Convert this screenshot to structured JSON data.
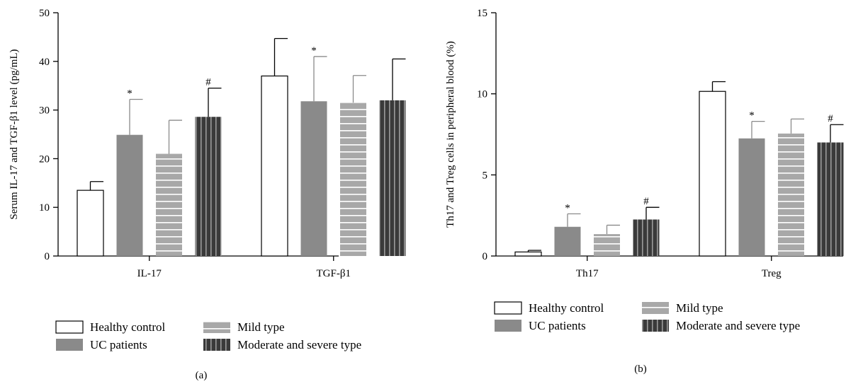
{
  "colors": {
    "healthy": "#ffffff",
    "uc": "#8a8a8a",
    "mild": "#a8a8a8",
    "severe": "#3a3a3a",
    "stripe": "#ffffff",
    "axis": "#000000"
  },
  "legend": [
    {
      "key": "healthy",
      "label": "Healthy control"
    },
    {
      "key": "uc",
      "label": "UC patients"
    },
    {
      "key": "mild",
      "label": "Mild type"
    },
    {
      "key": "severe",
      "label": "Moderate and severe type"
    }
  ],
  "chart_data": [
    {
      "type": "bar",
      "panel": "(a)",
      "ylabel": "Serum IL-17 and TGF-β1 level (pg/mL)",
      "ylim": [
        0,
        50
      ],
      "yticks": [
        0,
        10,
        20,
        30,
        40,
        50
      ],
      "categories": [
        "IL-17",
        "TGF-β1"
      ],
      "series": [
        {
          "name": "Healthy control",
          "key": "healthy",
          "values": [
            13.5,
            37.0
          ],
          "errors": [
            1.8,
            7.7
          ],
          "markers": [
            "",
            ""
          ]
        },
        {
          "name": "UC patients",
          "key": "uc",
          "values": [
            24.9,
            31.8
          ],
          "errors": [
            7.3,
            9.2
          ],
          "markers": [
            "*",
            "*"
          ]
        },
        {
          "name": "Mild type",
          "key": "mild",
          "values": [
            21.0,
            31.5
          ],
          "errors": [
            6.9,
            5.6
          ],
          "markers": [
            "",
            ""
          ]
        },
        {
          "name": "Moderate and severe type",
          "key": "severe",
          "values": [
            28.6,
            32.0
          ],
          "errors": [
            5.9,
            8.5
          ],
          "markers": [
            "#",
            ""
          ]
        }
      ]
    },
    {
      "type": "bar",
      "panel": "(b)",
      "ylabel": "Th17 and Treg cells in peripheral blood (%)",
      "ylim": [
        0,
        15
      ],
      "yticks": [
        0,
        5,
        10,
        15
      ],
      "categories": [
        "Th17",
        "Treg"
      ],
      "series": [
        {
          "name": "Healthy control",
          "key": "healthy",
          "values": [
            0.25,
            10.15
          ],
          "errors": [
            0.1,
            0.6
          ],
          "markers": [
            "",
            ""
          ]
        },
        {
          "name": "UC patients",
          "key": "uc",
          "values": [
            1.8,
            7.25
          ],
          "errors": [
            0.8,
            1.05
          ],
          "markers": [
            "*",
            "*"
          ]
        },
        {
          "name": "Mild type",
          "key": "mild",
          "values": [
            1.35,
            7.55
          ],
          "errors": [
            0.55,
            0.9
          ],
          "markers": [
            "",
            ""
          ]
        },
        {
          "name": "Moderate and severe type",
          "key": "severe",
          "values": [
            2.25,
            7.0
          ],
          "errors": [
            0.75,
            1.1
          ],
          "markers": [
            "#",
            "#"
          ]
        }
      ]
    }
  ]
}
